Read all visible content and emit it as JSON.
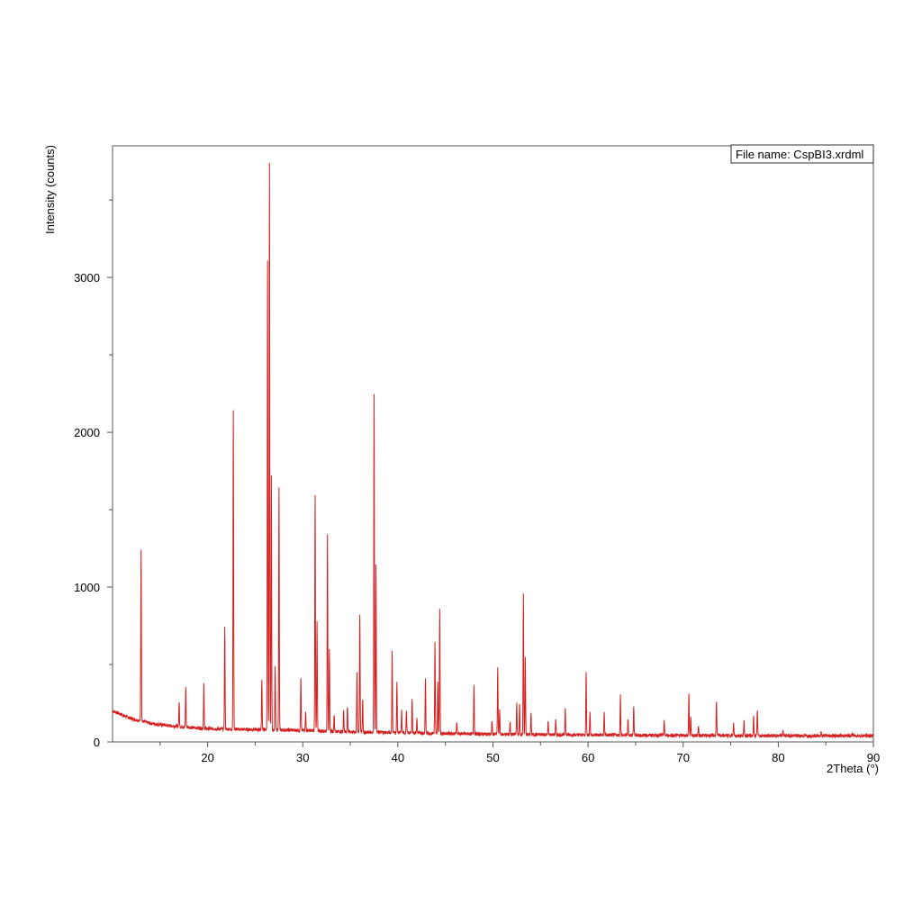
{
  "chart_data": {
    "type": "line",
    "title": "",
    "xlabel": "2Theta (°)",
    "ylabel": "Intensity (counts)",
    "xlim": [
      10,
      90
    ],
    "ylim": [
      0,
      3850
    ],
    "x_ticks_labeled": [
      20,
      30,
      40,
      50,
      60,
      70,
      80,
      90
    ],
    "x_ticks_minor": [
      15,
      25,
      35,
      45,
      55,
      65,
      75,
      85
    ],
    "y_ticks_labeled": [
      0,
      1000,
      2000,
      3000
    ],
    "y_ticks_minor": [
      500,
      1500,
      2500,
      3500
    ],
    "grid": false,
    "legend_position": "top-right",
    "annotation": "File name:  CspBI3.xrdml",
    "line_color": "#d42020",
    "series": [
      {
        "baseline": [
          [
            10,
            200
          ],
          [
            12,
            150
          ],
          [
            14,
            120
          ],
          [
            16,
            105
          ],
          [
            20,
            85
          ],
          [
            25,
            80
          ],
          [
            30,
            75
          ],
          [
            35,
            65
          ],
          [
            40,
            60
          ],
          [
            45,
            55
          ],
          [
            50,
            50
          ],
          [
            60,
            45
          ],
          [
            70,
            42
          ],
          [
            80,
            40
          ],
          [
            90,
            40
          ]
        ],
        "peaks": [
          [
            13.0,
            1250
          ],
          [
            17.0,
            260
          ],
          [
            17.7,
            360
          ],
          [
            19.6,
            370
          ],
          [
            21.8,
            740
          ],
          [
            22.7,
            2150
          ],
          [
            25.7,
            400
          ],
          [
            26.3,
            3100
          ],
          [
            26.5,
            3740
          ],
          [
            26.7,
            1720
          ],
          [
            27.1,
            480
          ],
          [
            27.5,
            1640
          ],
          [
            29.8,
            410
          ],
          [
            30.3,
            200
          ],
          [
            31.3,
            1600
          ],
          [
            31.5,
            780
          ],
          [
            32.6,
            1340
          ],
          [
            32.8,
            590
          ],
          [
            33.3,
            180
          ],
          [
            34.3,
            210
          ],
          [
            34.7,
            230
          ],
          [
            35.7,
            440
          ],
          [
            36.0,
            830
          ],
          [
            36.3,
            280
          ],
          [
            37.5,
            2250
          ],
          [
            37.7,
            1150
          ],
          [
            39.4,
            580
          ],
          [
            39.9,
            380
          ],
          [
            40.4,
            200
          ],
          [
            40.9,
            200
          ],
          [
            41.5,
            280
          ],
          [
            42.0,
            150
          ],
          [
            42.9,
            420
          ],
          [
            43.9,
            640
          ],
          [
            44.2,
            400
          ],
          [
            44.4,
            870
          ],
          [
            46.2,
            130
          ],
          [
            48.0,
            370
          ],
          [
            49.9,
            140
          ],
          [
            50.5,
            480
          ],
          [
            50.7,
            200
          ],
          [
            51.8,
            130
          ],
          [
            52.5,
            250
          ],
          [
            52.8,
            240
          ],
          [
            53.2,
            950
          ],
          [
            53.4,
            550
          ],
          [
            54.0,
            180
          ],
          [
            55.8,
            130
          ],
          [
            56.6,
            140
          ],
          [
            57.6,
            220
          ],
          [
            59.8,
            460
          ],
          [
            60.2,
            200
          ],
          [
            61.7,
            190
          ],
          [
            63.4,
            300
          ],
          [
            64.2,
            150
          ],
          [
            64.8,
            230
          ],
          [
            68.0,
            140
          ],
          [
            70.6,
            320
          ],
          [
            70.8,
            160
          ],
          [
            71.6,
            100
          ],
          [
            73.5,
            270
          ],
          [
            75.3,
            120
          ],
          [
            76.4,
            130
          ],
          [
            77.4,
            160
          ],
          [
            77.8,
            210
          ],
          [
            80.5,
            80
          ],
          [
            84.5,
            60
          ],
          [
            87.8,
            60
          ]
        ]
      }
    ]
  }
}
